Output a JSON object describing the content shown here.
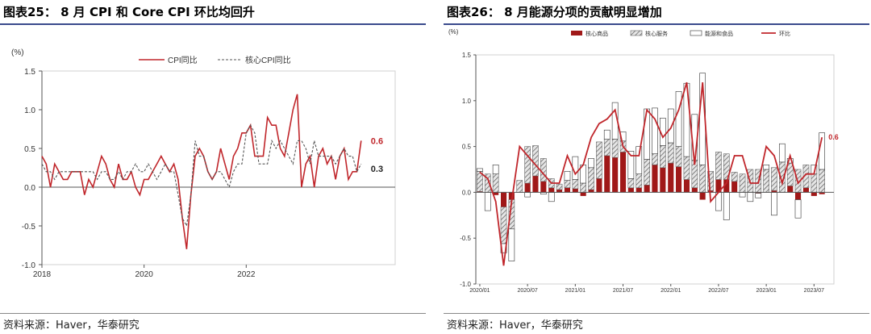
{
  "left": {
    "title": "图表25：  8 月 CPI 和 Core CPI 环比均回升",
    "source": "资料来源：Haver，华泰研究",
    "chart_data": {
      "type": "line",
      "unit_label": "(%)",
      "ylim": [
        -1.0,
        1.5
      ],
      "y_ticks": [
        "1.5",
        "1.0",
        "0.5",
        "0.0",
        "-0.5",
        "-1.0"
      ],
      "x_ticks": [
        "2018",
        "2020",
        "2022"
      ],
      "start": "2018-01",
      "series": [
        {
          "name": "CPI同比",
          "color": "#c0262b",
          "style": "solid",
          "values": [
            0.4,
            0.3,
            0.0,
            0.3,
            0.2,
            0.1,
            0.1,
            0.2,
            0.2,
            0.2,
            -0.1,
            0.1,
            0.0,
            0.2,
            0.4,
            0.3,
            0.1,
            0.0,
            0.3,
            0.1,
            0.1,
            0.2,
            0.0,
            -0.1,
            0.1,
            0.1,
            0.2,
            0.3,
            0.4,
            0.3,
            0.2,
            0.3,
            0.1,
            -0.4,
            -0.8,
            -0.1,
            0.4,
            0.5,
            0.4,
            0.2,
            0.1,
            0.2,
            0.5,
            0.3,
            0.1,
            0.4,
            0.5,
            0.7,
            0.7,
            0.8,
            0.4,
            0.4,
            0.4,
            0.9,
            0.8,
            0.8,
            0.5,
            0.4,
            0.7,
            1.0,
            1.2,
            0.0,
            0.3,
            0.4,
            0.0,
            0.4,
            0.5,
            0.3,
            0.4,
            0.1,
            0.4,
            0.5,
            0.1,
            0.2,
            0.2,
            0.6
          ]
        },
        {
          "name": "核心CPI同比",
          "color": "#555555",
          "style": "dashed",
          "values": [
            0.3,
            0.2,
            0.2,
            0.1,
            0.2,
            0.2,
            0.2,
            0.2,
            0.2,
            0.2,
            0.2,
            0.2,
            0.2,
            0.1,
            0.2,
            0.2,
            0.1,
            0.1,
            0.2,
            0.1,
            0.2,
            0.2,
            0.3,
            0.2,
            0.2,
            0.3,
            0.2,
            0.1,
            0.2,
            0.3,
            0.2,
            0.2,
            -0.1,
            -0.4,
            -0.5,
            -0.1,
            0.6,
            0.4,
            0.4,
            0.2,
            0.1,
            0.2,
            0.2,
            0.1,
            0.0,
            0.2,
            0.3,
            0.3,
            0.7,
            0.8,
            0.7,
            0.3,
            0.3,
            0.3,
            0.6,
            0.5,
            0.6,
            0.5,
            0.4,
            0.3,
            0.6,
            0.6,
            0.5,
            0.3,
            0.6,
            0.4,
            0.4,
            0.4,
            0.4,
            0.3,
            0.4,
            0.5,
            0.4,
            0.4,
            0.2,
            0.3
          ]
        }
      ],
      "end_labels": [
        "0.6",
        "0.3"
      ]
    }
  },
  "right": {
    "title": "图表26：  8 月能源分项的贡献明显增加",
    "source": "资料来源：Haver，华泰研究",
    "chart_data": {
      "type": "bar",
      "stacked": true,
      "unit_label": "(%)",
      "ylim": [
        -1.0,
        1.5
      ],
      "y_ticks": [
        "1.5",
        "1.0",
        "0.5",
        "0.0",
        "-0.5",
        "-1.0"
      ],
      "categories": [
        "2020/01",
        "2020/02",
        "2020/03",
        "2020/04",
        "2020/05",
        "2020/06",
        "2020/07",
        "2020/08",
        "2020/09",
        "2020/10",
        "2020/11",
        "2020/12",
        "2021/01",
        "2021/02",
        "2021/03",
        "2021/04",
        "2021/05",
        "2021/06",
        "2021/07",
        "2021/08",
        "2021/09",
        "2021/10",
        "2021/11",
        "2021/12",
        "2022/01",
        "2022/02",
        "2022/03",
        "2022/04",
        "2022/05",
        "2022/06",
        "2022/07",
        "2022/08",
        "2022/09",
        "2022/10",
        "2022/11",
        "2022/12",
        "2023/01",
        "2023/02",
        "2023/03",
        "2023/04",
        "2023/05",
        "2023/06",
        "2023/07",
        "2023/08"
      ],
      "x_ticks": [
        "2020/01",
        "2020/07",
        "2021/01",
        "2021/07",
        "2022/01",
        "2022/07",
        "2023/01",
        "2023/07"
      ],
      "series": [
        {
          "name": "核心商品",
          "color": "#a01818",
          "pattern": "solid",
          "values": [
            0.01,
            0.0,
            -0.03,
            -0.16,
            -0.08,
            0.0,
            0.1,
            0.18,
            0.12,
            0.05,
            0.03,
            0.05,
            0.04,
            -0.04,
            0.03,
            0.15,
            0.4,
            0.38,
            0.44,
            0.05,
            0.05,
            0.08,
            0.3,
            0.27,
            0.32,
            0.28,
            0.14,
            0.05,
            -0.08,
            0.02,
            0.14,
            0.14,
            0.12,
            0.0,
            0.0,
            -0.01,
            0.0,
            0.02,
            0.0,
            0.07,
            -0.08,
            0.05,
            -0.04,
            -0.02
          ]
        },
        {
          "name": "核心服务",
          "color": "#8a8a8a",
          "pattern": "hatch",
          "values": [
            0.22,
            0.2,
            0.2,
            -0.4,
            -0.32,
            0.13,
            0.4,
            0.33,
            0.25,
            0.1,
            0.06,
            0.08,
            0.1,
            0.1,
            0.24,
            0.4,
            0.18,
            0.2,
            0.12,
            0.1,
            0.15,
            0.28,
            0.12,
            0.24,
            0.22,
            0.22,
            0.25,
            0.3,
            0.3,
            0.21,
            0.3,
            0.28,
            0.1,
            0.2,
            0.25,
            0.25,
            0.25,
            0.25,
            0.33,
            0.25,
            0.25,
            0.25,
            0.2,
            0.25
          ]
        },
        {
          "name": "能源和食品",
          "color": "#ffffff",
          "pattern": "outline",
          "values": [
            0.03,
            -0.2,
            0.1,
            -0.1,
            -0.35,
            0.0,
            -0.05,
            0.0,
            -0.02,
            -0.1,
            0.0,
            0.1,
            0.25,
            0.2,
            0.1,
            0.0,
            0.1,
            0.4,
            0.1,
            0.3,
            0.3,
            0.55,
            0.5,
            0.3,
            0.37,
            0.6,
            0.8,
            0.5,
            1.0,
            0.0,
            -0.2,
            -0.3,
            0.0,
            -0.05,
            -0.1,
            -0.05,
            0.05,
            -0.25,
            0.2,
            0.05,
            -0.2,
            0.0,
            0.1,
            0.4
          ]
        },
        {
          "name": "环比",
          "color": "#c0262b",
          "pattern": "line",
          "values": [
            0.22,
            0.15,
            -0.1,
            -0.8,
            -0.1,
            0.5,
            0.4,
            0.3,
            0.2,
            0.1,
            0.1,
            0.4,
            0.2,
            0.3,
            0.6,
            0.75,
            0.8,
            0.9,
            0.5,
            0.4,
            0.4,
            0.9,
            0.8,
            0.6,
            0.7,
            0.9,
            1.2,
            0.3,
            1.2,
            -0.1,
            0.0,
            0.1,
            0.4,
            0.4,
            0.1,
            0.1,
            0.5,
            0.4,
            0.1,
            0.4,
            0.1,
            0.2,
            0.2,
            0.6
          ]
        }
      ],
      "end_label": "0.6"
    }
  }
}
